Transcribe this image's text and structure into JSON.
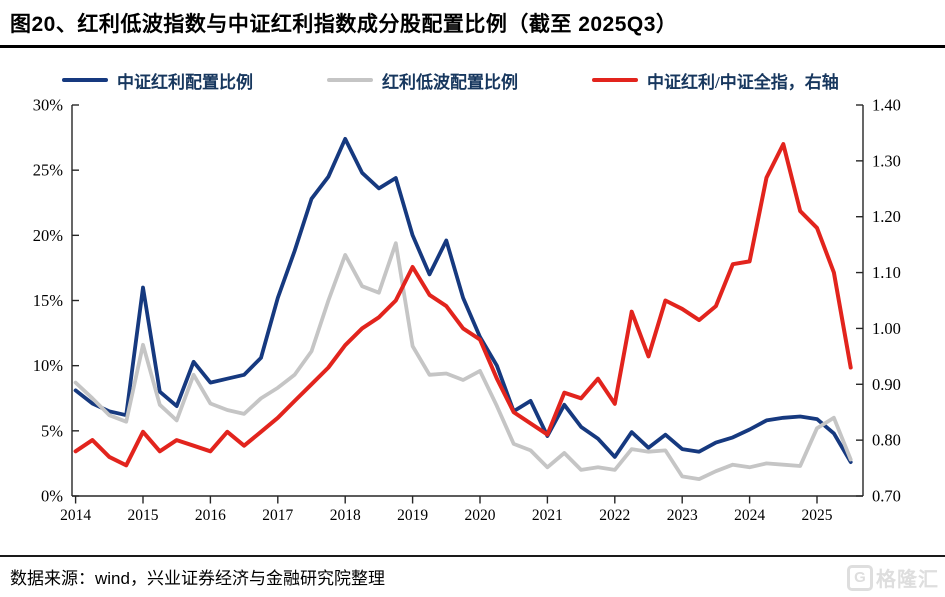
{
  "title": "图20、红利低波指数与中证红利指数成分股配置比例（截至 2025Q3）",
  "legend": [
    {
      "label": "中证红利配置比例",
      "color": "#16397f"
    },
    {
      "label": "红利低波配置比例",
      "color": "#c5c5c5"
    },
    {
      "label": "中证红利/中证全指，右轴",
      "color": "#e2241d"
    }
  ],
  "footer": {
    "source": "数据来源：wind，兴业证券经济与金融研究院整理",
    "watermark": "格隆汇",
    "watermark_icon": "G"
  },
  "chart_data": {
    "type": "line",
    "title": "红利低波指数与中证红利指数成分股配置比例",
    "x_tick_labels": [
      "2014",
      "2015",
      "2016",
      "2017",
      "2018",
      "2019",
      "2020",
      "2021",
      "2022",
      "2023",
      "2024",
      "2025"
    ],
    "left_axis": {
      "min": 0,
      "max": 30,
      "tick_labels": [
        "0%",
        "5%",
        "10%",
        "15%",
        "20%",
        "25%",
        "30%"
      ]
    },
    "right_axis": {
      "min": 0.7,
      "max": 1.4,
      "tick_labels": [
        "0.70",
        "0.80",
        "0.90",
        "1.00",
        "1.10",
        "1.20",
        "1.30",
        "1.40"
      ]
    },
    "grid": false,
    "legend_position": "top",
    "x": [
      "2014Q1",
      "2014Q2",
      "2014Q3",
      "2014Q4",
      "2015Q1",
      "2015Q2",
      "2015Q3",
      "2015Q4",
      "2016Q1",
      "2016Q2",
      "2016Q3",
      "2016Q4",
      "2017Q1",
      "2017Q2",
      "2017Q3",
      "2017Q4",
      "2018Q1",
      "2018Q2",
      "2018Q3",
      "2018Q4",
      "2019Q1",
      "2019Q2",
      "2019Q3",
      "2019Q4",
      "2020Q1",
      "2020Q2",
      "2020Q3",
      "2020Q4",
      "2021Q1",
      "2021Q2",
      "2021Q3",
      "2021Q4",
      "2022Q1",
      "2022Q2",
      "2022Q3",
      "2022Q4",
      "2023Q1",
      "2023Q2",
      "2023Q3",
      "2023Q4",
      "2024Q1",
      "2024Q2",
      "2024Q3",
      "2024Q4",
      "2025Q1",
      "2025Q2",
      "2025Q3"
    ],
    "series": [
      {
        "name": "中证红利配置比例",
        "axis": "left",
        "unit": "%",
        "color": "#16397f",
        "width": 3.8,
        "values": [
          8.1,
          7.1,
          6.5,
          6.2,
          16.0,
          8.0,
          6.9,
          10.3,
          8.7,
          9.0,
          9.3,
          10.6,
          15.2,
          18.8,
          22.8,
          24.5,
          27.4,
          24.8,
          23.6,
          24.4,
          20.0,
          17.0,
          19.6,
          15.2,
          12.2,
          10.0,
          6.5,
          7.3,
          4.6,
          7.0,
          5.3,
          4.4,
          3.0,
          4.9,
          3.7,
          4.7,
          3.6,
          3.4,
          4.1,
          4.5,
          5.1,
          5.8,
          6.0,
          6.1,
          5.9,
          4.8,
          2.6
        ]
      },
      {
        "name": "红利低波配置比例",
        "axis": "left",
        "unit": "%",
        "color": "#c5c5c5",
        "width": 3.8,
        "values": [
          8.7,
          7.5,
          6.2,
          5.7,
          11.6,
          7.0,
          5.8,
          9.3,
          7.1,
          6.6,
          6.3,
          7.5,
          8.3,
          9.3,
          11.1,
          15.0,
          18.5,
          16.1,
          15.6,
          19.4,
          11.5,
          9.3,
          9.4,
          8.9,
          9.6,
          6.9,
          4.0,
          3.5,
          2.2,
          3.3,
          2.0,
          2.2,
          2.0,
          3.6,
          3.4,
          3.5,
          1.5,
          1.3,
          1.9,
          2.4,
          2.2,
          2.5,
          2.4,
          2.3,
          5.2,
          6.0,
          2.8
        ]
      },
      {
        "name": "中证红利/中证全指，右轴",
        "axis": "right",
        "unit": "ratio",
        "color": "#e2241d",
        "width": 4,
        "values": [
          0.78,
          0.8,
          0.77,
          0.755,
          0.815,
          0.78,
          0.8,
          0.79,
          0.78,
          0.815,
          0.79,
          0.815,
          0.84,
          0.87,
          0.9,
          0.93,
          0.97,
          1.0,
          1.02,
          1.05,
          1.11,
          1.06,
          1.04,
          1.0,
          0.98,
          0.91,
          0.85,
          0.83,
          0.81,
          0.885,
          0.875,
          0.91,
          0.865,
          1.03,
          0.95,
          1.05,
          1.035,
          1.015,
          1.04,
          1.115,
          1.12,
          1.27,
          1.33,
          1.21,
          1.18,
          1.1,
          0.93
        ]
      }
    ]
  }
}
